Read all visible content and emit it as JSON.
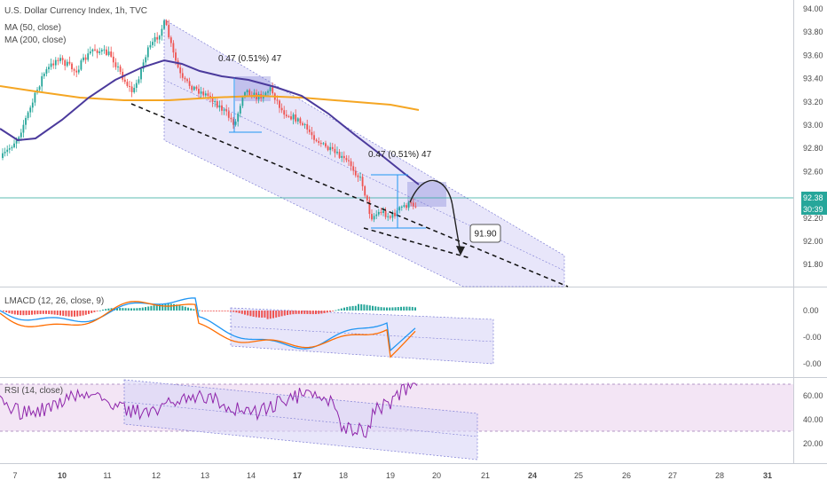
{
  "chart_data": [
    {
      "type": "candlestick",
      "title": "U.S. Dollar Currency Index, 1h, TVC",
      "legend": [
        "MA (50, close)",
        "MA (200, close)"
      ],
      "ylim": [
        91.65,
        94.05
      ],
      "y_ticks": [
        "94.00",
        "93.80",
        "93.60",
        "93.40",
        "93.20",
        "93.00",
        "92.80",
        "92.60",
        "92.40",
        "92.20",
        "92.00",
        "91.80"
      ],
      "x_ticks": [
        "7",
        "10",
        "11",
        "12",
        "13",
        "14",
        "17",
        "18",
        "19",
        "20",
        "21",
        "24",
        "25",
        "26",
        "27",
        "28",
        "31"
      ],
      "last_price": "92.38",
      "countdown": "30:39",
      "annotations": [
        "0.47 (0.51%) 47",
        "0.47 (0.51%) 47",
        "91.90"
      ],
      "colors": {
        "up": "#26a69a",
        "down": "#ef5350",
        "ma50": "#4b3a9c",
        "ma200": "#f5a623",
        "channel": "#d8d6f6"
      }
    },
    {
      "type": "macd",
      "title": "LMACD (12, 26, close, 9)",
      "y_ticks": [
        "0.00",
        "-0.00",
        "-0.00"
      ],
      "colors": {
        "macd": "#2196f3",
        "signal": "#ff6d00",
        "hist_up": "#26a69a",
        "hist_down": "#ef5350"
      }
    },
    {
      "type": "line",
      "title": "RSI (14, close)",
      "y_ticks": [
        "60.00",
        "40.00",
        "20.00"
      ],
      "levels": [
        70,
        30
      ],
      "colors": {
        "rsi": "#8e24aa",
        "band": "#f3e5f5"
      }
    }
  ]
}
